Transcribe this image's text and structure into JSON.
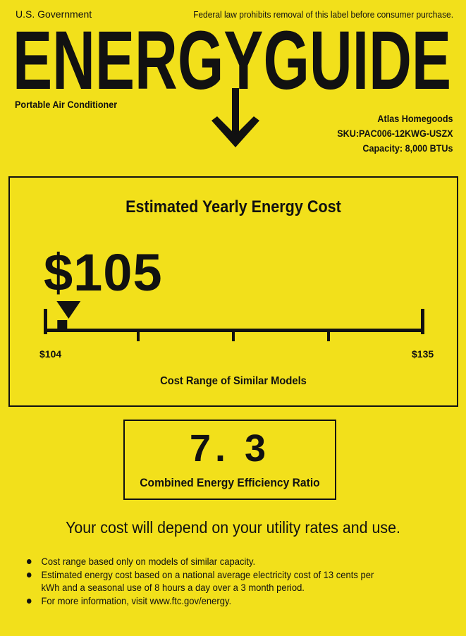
{
  "header": {
    "government": "U.S. Government",
    "legal_notice": "Federal law prohibits removal of this label before consumer purchase.",
    "logo_text": "ENERGYGUIDE",
    "product_type": "Portable Air Conditioner",
    "manufacturer": "Atlas Homegoods",
    "sku": "SKU:PAC006-12KWG-USZX",
    "capacity": "Capacity: 8,000 BTUs"
  },
  "cost": {
    "title": "Estimated Yearly Energy Cost",
    "value": "$105",
    "amount": 105,
    "range_min_label": "$104",
    "range_max_label": "$135",
    "range_min": 104,
    "range_max": 135,
    "caption": "Cost Range of Similar Models"
  },
  "efficiency": {
    "value": "7. 3",
    "caption": "Combined Energy Efficiency Ratio"
  },
  "note": "Your cost will depend on your utility rates and use.",
  "bullets": [
    "Cost range based only on models of similar capacity.",
    "Estimated energy cost based on a national average electricity cost of 13 cents per kWh and a seasonal use of 8 hours a day over a 3 month period.",
    "For more information, visit www.ftc.gov/energy."
  ],
  "colors": {
    "background": "#f2e01b",
    "ink": "#111111"
  }
}
